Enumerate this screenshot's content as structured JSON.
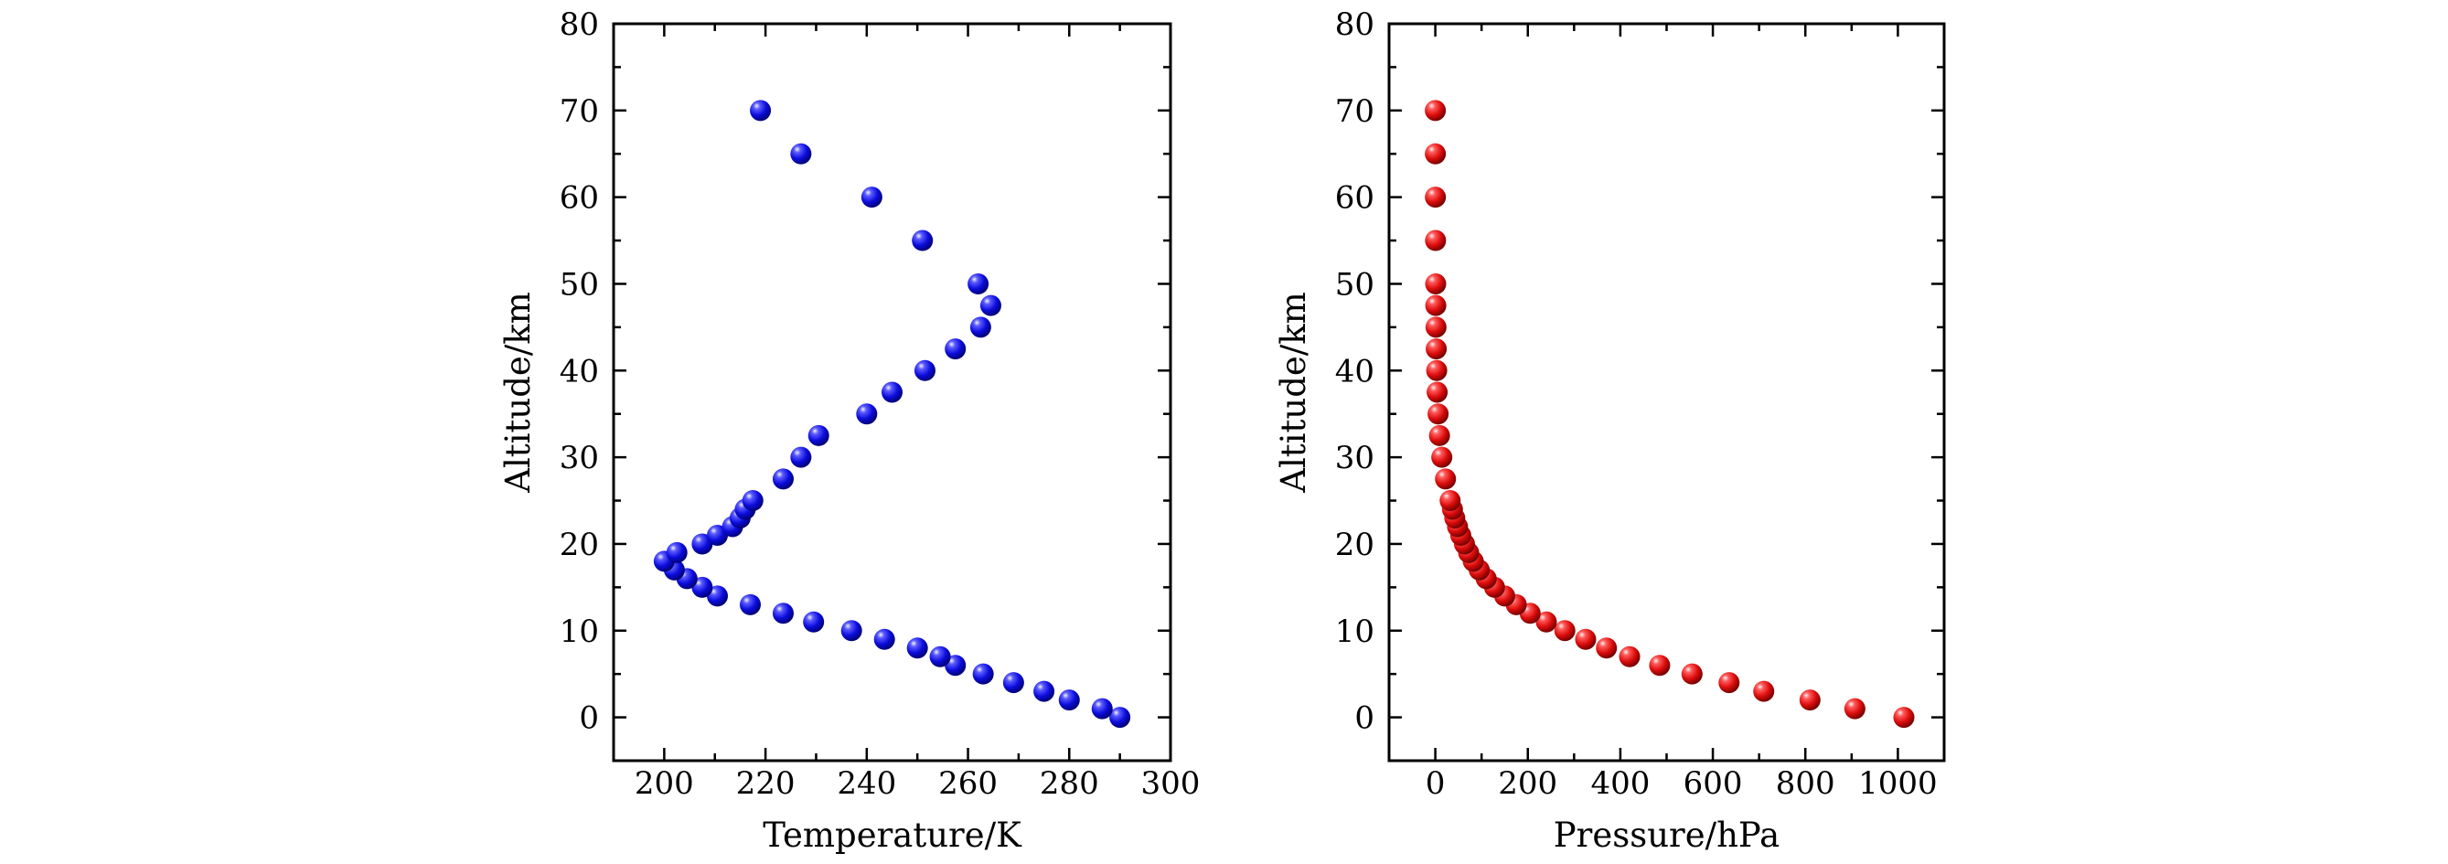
{
  "chart_data": [
    {
      "type": "scatter",
      "title": "",
      "xlabel": "Temperature/K",
      "ylabel": "Altitude/km",
      "xlim": [
        190,
        300
      ],
      "ylim": [
        -5,
        80
      ],
      "xticks": [
        200,
        220,
        240,
        260,
        280,
        300
      ],
      "yticks": [
        0,
        10,
        20,
        30,
        40,
        50,
        60,
        70,
        80
      ],
      "grid": false,
      "series": [
        {
          "name": "Temperature",
          "color": "#1010e0",
          "points": [
            {
              "x": 290,
              "y": 0
            },
            {
              "x": 286.5,
              "y": 1
            },
            {
              "x": 280,
              "y": 2
            },
            {
              "x": 275,
              "y": 3
            },
            {
              "x": 269,
              "y": 4
            },
            {
              "x": 263,
              "y": 5
            },
            {
              "x": 257.5,
              "y": 6
            },
            {
              "x": 254.5,
              "y": 7
            },
            {
              "x": 250,
              "y": 8
            },
            {
              "x": 243.5,
              "y": 9
            },
            {
              "x": 237,
              "y": 10
            },
            {
              "x": 229.5,
              "y": 11
            },
            {
              "x": 223.5,
              "y": 12
            },
            {
              "x": 217,
              "y": 13
            },
            {
              "x": 210.5,
              "y": 14
            },
            {
              "x": 207.5,
              "y": 15
            },
            {
              "x": 204.5,
              "y": 16
            },
            {
              "x": 202,
              "y": 17
            },
            {
              "x": 200,
              "y": 18
            },
            {
              "x": 202.5,
              "y": 19
            },
            {
              "x": 207.5,
              "y": 20
            },
            {
              "x": 210.5,
              "y": 21
            },
            {
              "x": 213.5,
              "y": 22
            },
            {
              "x": 215,
              "y": 23
            },
            {
              "x": 216,
              "y": 24
            },
            {
              "x": 217.5,
              "y": 25
            },
            {
              "x": 223.5,
              "y": 27.5
            },
            {
              "x": 227,
              "y": 30
            },
            {
              "x": 230.5,
              "y": 32.5
            },
            {
              "x": 240,
              "y": 35
            },
            {
              "x": 245,
              "y": 37.5
            },
            {
              "x": 251.5,
              "y": 40
            },
            {
              "x": 257.5,
              "y": 42.5
            },
            {
              "x": 262.5,
              "y": 45
            },
            {
              "x": 264.5,
              "y": 47.5
            },
            {
              "x": 262,
              "y": 50
            },
            {
              "x": 251,
              "y": 55
            },
            {
              "x": 241,
              "y": 60
            },
            {
              "x": 227,
              "y": 65
            },
            {
              "x": 219,
              "y": 70
            }
          ]
        }
      ]
    },
    {
      "type": "scatter",
      "title": "",
      "xlabel": "Pressure/hPa",
      "ylabel": "Altitude/km",
      "xlim": [
        -100,
        1100
      ],
      "ylim": [
        -5,
        80
      ],
      "xticks": [
        0,
        200,
        400,
        600,
        800,
        1000
      ],
      "yticks": [
        0,
        10,
        20,
        30,
        40,
        50,
        60,
        70,
        80
      ],
      "grid": false,
      "series": [
        {
          "name": "Pressure",
          "color": "#e01010",
          "points": [
            {
              "x": 1013,
              "y": 0
            },
            {
              "x": 907,
              "y": 1
            },
            {
              "x": 810,
              "y": 2
            },
            {
              "x": 710,
              "y": 3
            },
            {
              "x": 635,
              "y": 4
            },
            {
              "x": 555,
              "y": 5
            },
            {
              "x": 485,
              "y": 6
            },
            {
              "x": 420,
              "y": 7
            },
            {
              "x": 370,
              "y": 8
            },
            {
              "x": 325,
              "y": 9
            },
            {
              "x": 280,
              "y": 10
            },
            {
              "x": 240,
              "y": 11
            },
            {
              "x": 205,
              "y": 12
            },
            {
              "x": 175,
              "y": 13
            },
            {
              "x": 150,
              "y": 14
            },
            {
              "x": 128,
              "y": 15
            },
            {
              "x": 110,
              "y": 16
            },
            {
              "x": 95,
              "y": 17
            },
            {
              "x": 82,
              "y": 18
            },
            {
              "x": 72,
              "y": 19
            },
            {
              "x": 63,
              "y": 20
            },
            {
              "x": 55,
              "y": 21
            },
            {
              "x": 48,
              "y": 22
            },
            {
              "x": 42,
              "y": 23
            },
            {
              "x": 37,
              "y": 24
            },
            {
              "x": 32,
              "y": 25
            },
            {
              "x": 22,
              "y": 27.5
            },
            {
              "x": 14,
              "y": 30
            },
            {
              "x": 9,
              "y": 32.5
            },
            {
              "x": 6,
              "y": 35
            },
            {
              "x": 4,
              "y": 37.5
            },
            {
              "x": 3,
              "y": 40
            },
            {
              "x": 2,
              "y": 42.5
            },
            {
              "x": 1.5,
              "y": 45
            },
            {
              "x": 1,
              "y": 47.5
            },
            {
              "x": 0.8,
              "y": 50
            },
            {
              "x": 0.5,
              "y": 55
            },
            {
              "x": 0.2,
              "y": 60
            },
            {
              "x": 0.1,
              "y": 65
            },
            {
              "x": 0.05,
              "y": 70
            }
          ]
        }
      ]
    }
  ]
}
